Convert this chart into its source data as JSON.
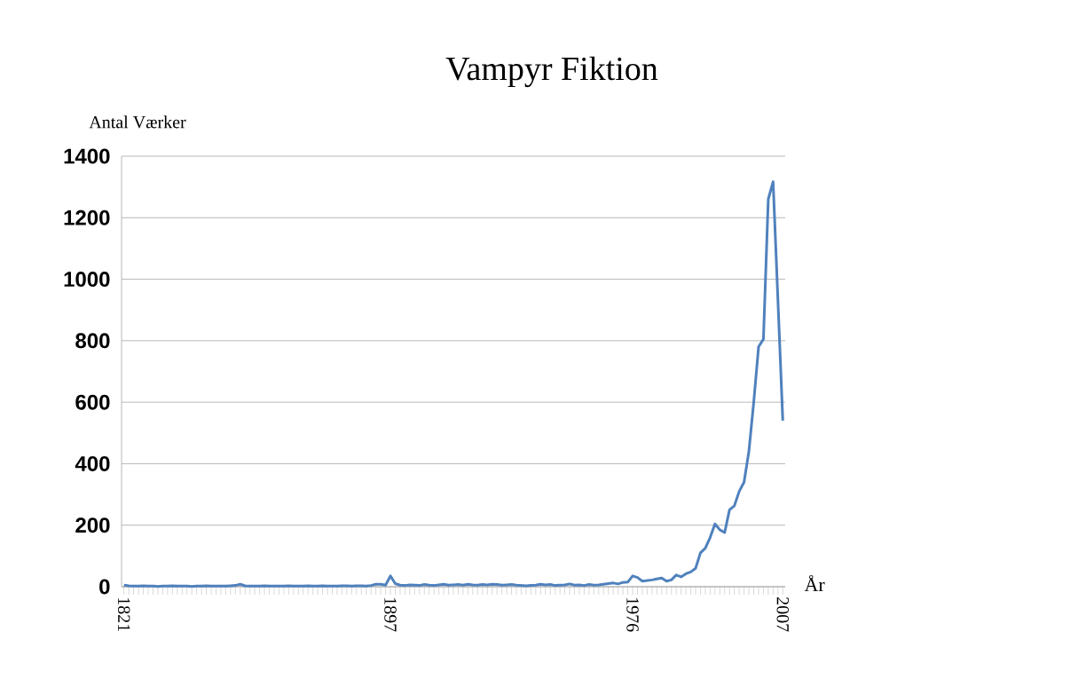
{
  "chart_data": {
    "type": "line",
    "title": "Vampyr Fiktion",
    "xlabel": "År",
    "ylabel": "Antal Værker",
    "categories": [
      "1821",
      null,
      null,
      null,
      null,
      null,
      null,
      null,
      null,
      null,
      null,
      null,
      null,
      null,
      null,
      null,
      null,
      null,
      null,
      null,
      null,
      null,
      null,
      null,
      null,
      null,
      null,
      null,
      null,
      null,
      null,
      null,
      null,
      null,
      null,
      null,
      null,
      null,
      null,
      null,
      null,
      null,
      null,
      null,
      null,
      null,
      null,
      null,
      null,
      null,
      null,
      null,
      null,
      null,
      null,
      "1897",
      null,
      null,
      null,
      null,
      null,
      null,
      null,
      null,
      null,
      null,
      null,
      null,
      null,
      null,
      null,
      null,
      null,
      null,
      null,
      null,
      null,
      null,
      null,
      null,
      null,
      null,
      null,
      null,
      null,
      null,
      null,
      null,
      null,
      null,
      null,
      null,
      null,
      null,
      null,
      null,
      null,
      null,
      null,
      null,
      null,
      null,
      null,
      null,
      null,
      "1976",
      null,
      null,
      null,
      null,
      null,
      null,
      null,
      null,
      null,
      null,
      null,
      null,
      null,
      null,
      null,
      null,
      null,
      null,
      null,
      null,
      null,
      null,
      null,
      null,
      null,
      null,
      null,
      null,
      null,
      null,
      "2007"
    ],
    "values": [
      5,
      3,
      2,
      2,
      3,
      2,
      2,
      1,
      2,
      2,
      3,
      2,
      2,
      2,
      1,
      2,
      2,
      3,
      2,
      2,
      2,
      2,
      3,
      4,
      8,
      3,
      2,
      2,
      2,
      3,
      2,
      2,
      2,
      2,
      3,
      2,
      2,
      2,
      3,
      2,
      2,
      3,
      2,
      2,
      2,
      3,
      3,
      2,
      3,
      3,
      2,
      4,
      8,
      8,
      5,
      35,
      10,
      5,
      4,
      6,
      5,
      4,
      7,
      5,
      4,
      6,
      8,
      5,
      6,
      7,
      5,
      8,
      6,
      5,
      7,
      6,
      8,
      7,
      5,
      6,
      7,
      5,
      4,
      3,
      4,
      5,
      8,
      6,
      7,
      4,
      5,
      6,
      9,
      5,
      6,
      4,
      7,
      5,
      6,
      8,
      10,
      12,
      9,
      14,
      15,
      35,
      30,
      18,
      20,
      22,
      25,
      28,
      18,
      22,
      38,
      32,
      42,
      48,
      60,
      110,
      125,
      160,
      204,
      185,
      176,
      250,
      263,
      310,
      340,
      440,
      600,
      780,
      805,
      1260,
      1317,
      930,
      540
    ],
    "color": "#4f81bd",
    "ylim": [
      0,
      1400
    ],
    "yticks": [
      0,
      200,
      400,
      600,
      800,
      1000,
      1200,
      1400
    ],
    "grid": "y",
    "marker": "none",
    "line_style": "solid"
  }
}
